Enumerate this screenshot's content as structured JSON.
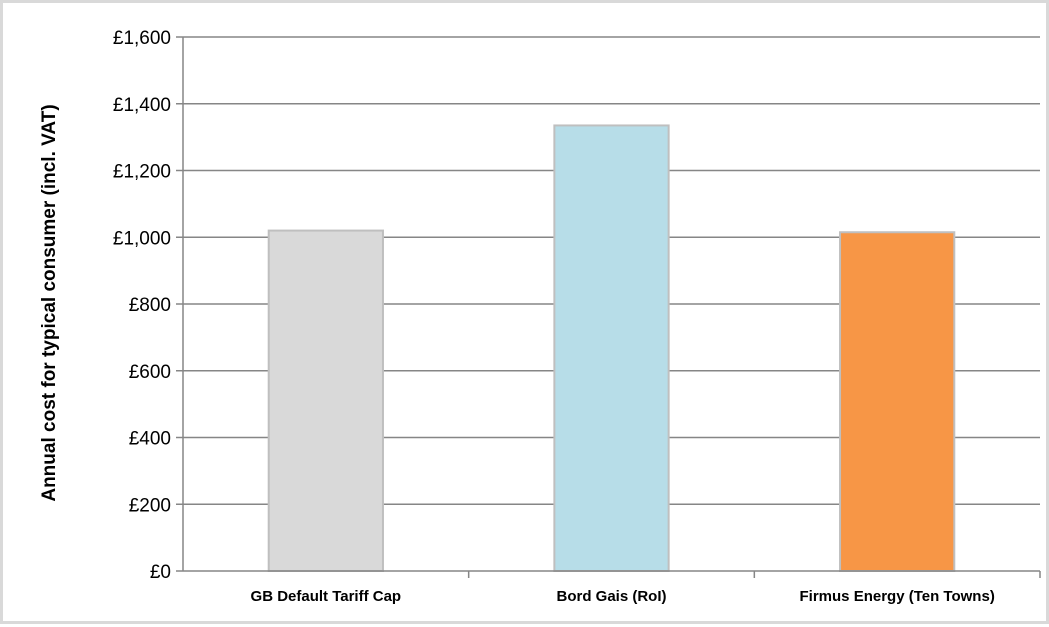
{
  "chart_data": {
    "type": "bar",
    "categories": [
      "GB Default Tariff Cap",
      "Bord Gais (RoI)",
      "Firmus Energy (Ten Towns)"
    ],
    "values": [
      1020,
      1335,
      1015
    ],
    "bar_colors": [
      "#d9d9d9",
      "#b7dde8",
      "#f79646"
    ],
    "bar_border_color": "#bfbfbf",
    "ylabel": "Annual cost for typical consumer (incl. VAT)",
    "ylim": [
      0,
      1600
    ],
    "yticks": [
      0,
      200,
      400,
      600,
      800,
      1000,
      1200,
      1400,
      1600
    ],
    "ytick_labels": [
      "£0",
      "£200",
      "£400",
      "£600",
      "£800",
      "£1,000",
      "£1,200",
      "£1,400",
      "£1,600"
    ],
    "grid": true,
    "gridline_color": "#868686"
  }
}
